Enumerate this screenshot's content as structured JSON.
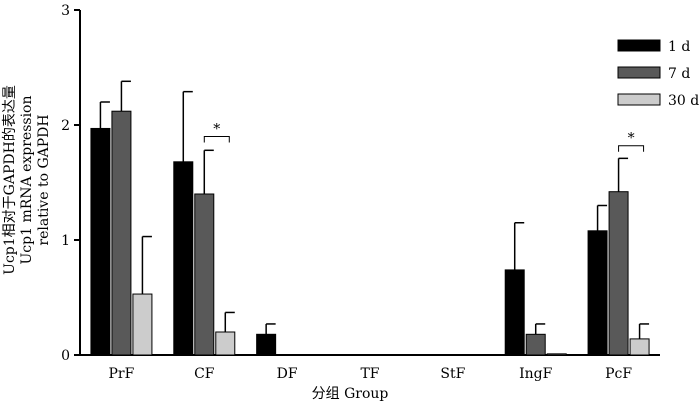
{
  "chart_data": {
    "type": "bar",
    "title": "",
    "xlabel": "分组  Group",
    "ylabel_lines": [
      "Ucp1相对于GAPDH的表达量",
      "Ucp1 mRNA expression",
      "relative to GAPDH"
    ],
    "ylim": [
      0,
      3
    ],
    "yticks": [
      "0",
      "1",
      "2",
      "3"
    ],
    "categories": [
      "PrF",
      "CF",
      "DF",
      "TF",
      "StF",
      "IngF",
      "PcF"
    ],
    "series": [
      {
        "name": "1 d",
        "color": "#000000",
        "values": [
          1.97,
          1.68,
          0.18,
          0,
          0,
          0.74,
          1.08
        ],
        "errors": [
          0.23,
          0.61,
          0.09,
          0,
          0,
          0.41,
          0.22
        ]
      },
      {
        "name": "7 d",
        "color": "#595959",
        "values": [
          2.12,
          1.4,
          0,
          0,
          0,
          0.18,
          1.42
        ],
        "errors": [
          0.26,
          0.38,
          0,
          0,
          0,
          0.09,
          0.29
        ]
      },
      {
        "name": "30 d",
        "color": "#cccccc",
        "values": [
          0.53,
          0.2,
          0,
          0,
          0,
          0.01,
          0.14
        ],
        "errors": [
          0.5,
          0.17,
          0,
          0,
          0,
          0,
          0.13
        ]
      }
    ],
    "significance": [
      {
        "category": "CF",
        "from_series": 1,
        "to_series": 2,
        "y": 1.9,
        "label": "*"
      },
      {
        "category": "PcF",
        "from_series": 1,
        "to_series": 2,
        "y": 1.82,
        "label": "*"
      }
    ],
    "legend_position": "top-right",
    "grid": false
  }
}
